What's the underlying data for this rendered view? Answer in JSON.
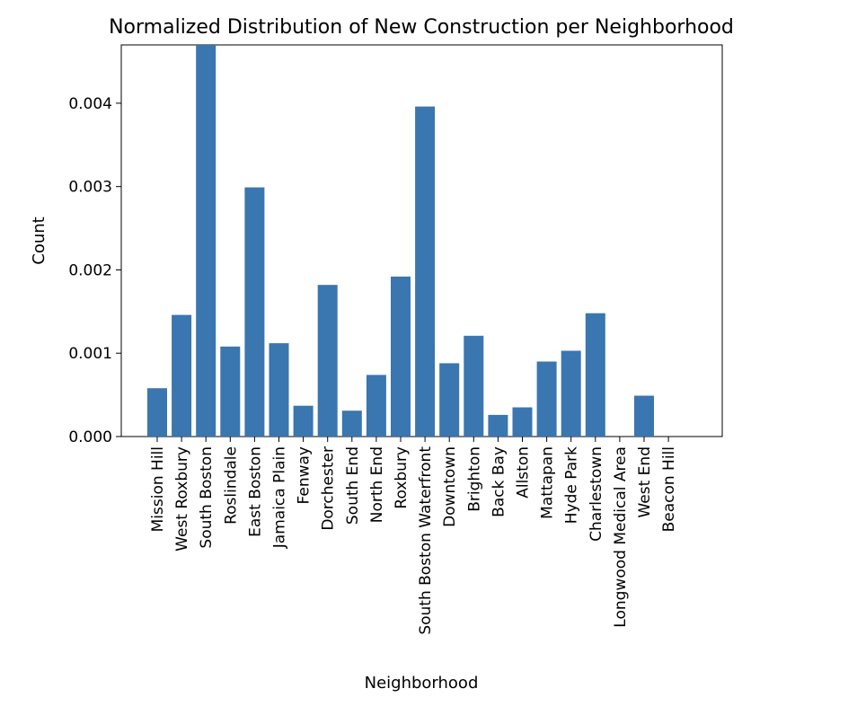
{
  "chart_data": {
    "type": "bar",
    "title": "Normalized Distribution of New Construction per Neighborhood",
    "xlabel": "Neighborhood",
    "ylabel": "Count",
    "ylim": [
      0,
      0.0047
    ],
    "yticks": [
      "0.000",
      "0.001",
      "0.002",
      "0.003",
      "0.004"
    ],
    "grid": false,
    "bar_color": "#3a76b0",
    "categories": [
      "Mission Hill",
      "West Roxbury",
      "South Boston",
      "Roslindale",
      "East Boston",
      "Jamaica Plain",
      "Fenway",
      "Dorchester",
      "South End",
      "North End",
      "Roxbury",
      "South Boston Waterfront",
      "Downtown",
      "Brighton",
      "Back Bay",
      "Allston",
      "Mattapan",
      "Hyde Park",
      "Charlestown",
      "Longwood Medical Area",
      "West End",
      "Beacon Hill"
    ],
    "values": [
      0.00058,
      0.00146,
      0.0047,
      0.00108,
      0.00299,
      0.00112,
      0.00037,
      0.00182,
      0.00031,
      0.00074,
      0.00192,
      0.00396,
      0.00088,
      0.00121,
      0.00026,
      0.00035,
      0.0009,
      0.00103,
      0.00148,
      0.0,
      0.00049,
      0.0
    ]
  }
}
